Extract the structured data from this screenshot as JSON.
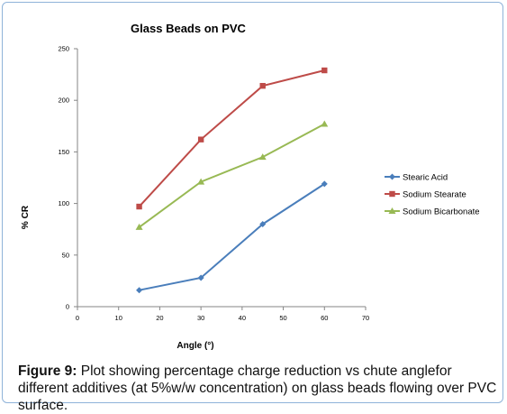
{
  "chart_data": {
    "type": "line",
    "title": "Glass Beads on PVC",
    "xlabel": "Angle (°)",
    "ylabel": "% CR",
    "xlim": [
      0,
      70
    ],
    "ylim": [
      0,
      250
    ],
    "xticks": [
      0,
      10,
      20,
      30,
      40,
      50,
      60,
      70
    ],
    "yticks": [
      0,
      50,
      100,
      150,
      200,
      250
    ],
    "grid": false,
    "legend_position": "right",
    "series": [
      {
        "name": "Stearic Acid",
        "marker": "diamond",
        "color": "#4a7ebb",
        "x": [
          15,
          30,
          45,
          60
        ],
        "y": [
          16,
          28,
          80,
          119
        ]
      },
      {
        "name": "Sodium Stearate",
        "marker": "square",
        "color": "#be4b48",
        "x": [
          15,
          30,
          45,
          60
        ],
        "y": [
          97,
          162,
          214,
          229
        ]
      },
      {
        "name": "Sodium Bicarbonate",
        "marker": "triangle",
        "color": "#98b954",
        "x": [
          15,
          30,
          45,
          60
        ],
        "y": [
          77,
          121,
          145,
          177
        ]
      }
    ]
  },
  "caption": {
    "label": "Figure 9:",
    "text": " Plot showing percentage charge reduction vs chute anglefor different additives (at 5%w/w concentration) on glass beads flowing over PVC surface."
  }
}
